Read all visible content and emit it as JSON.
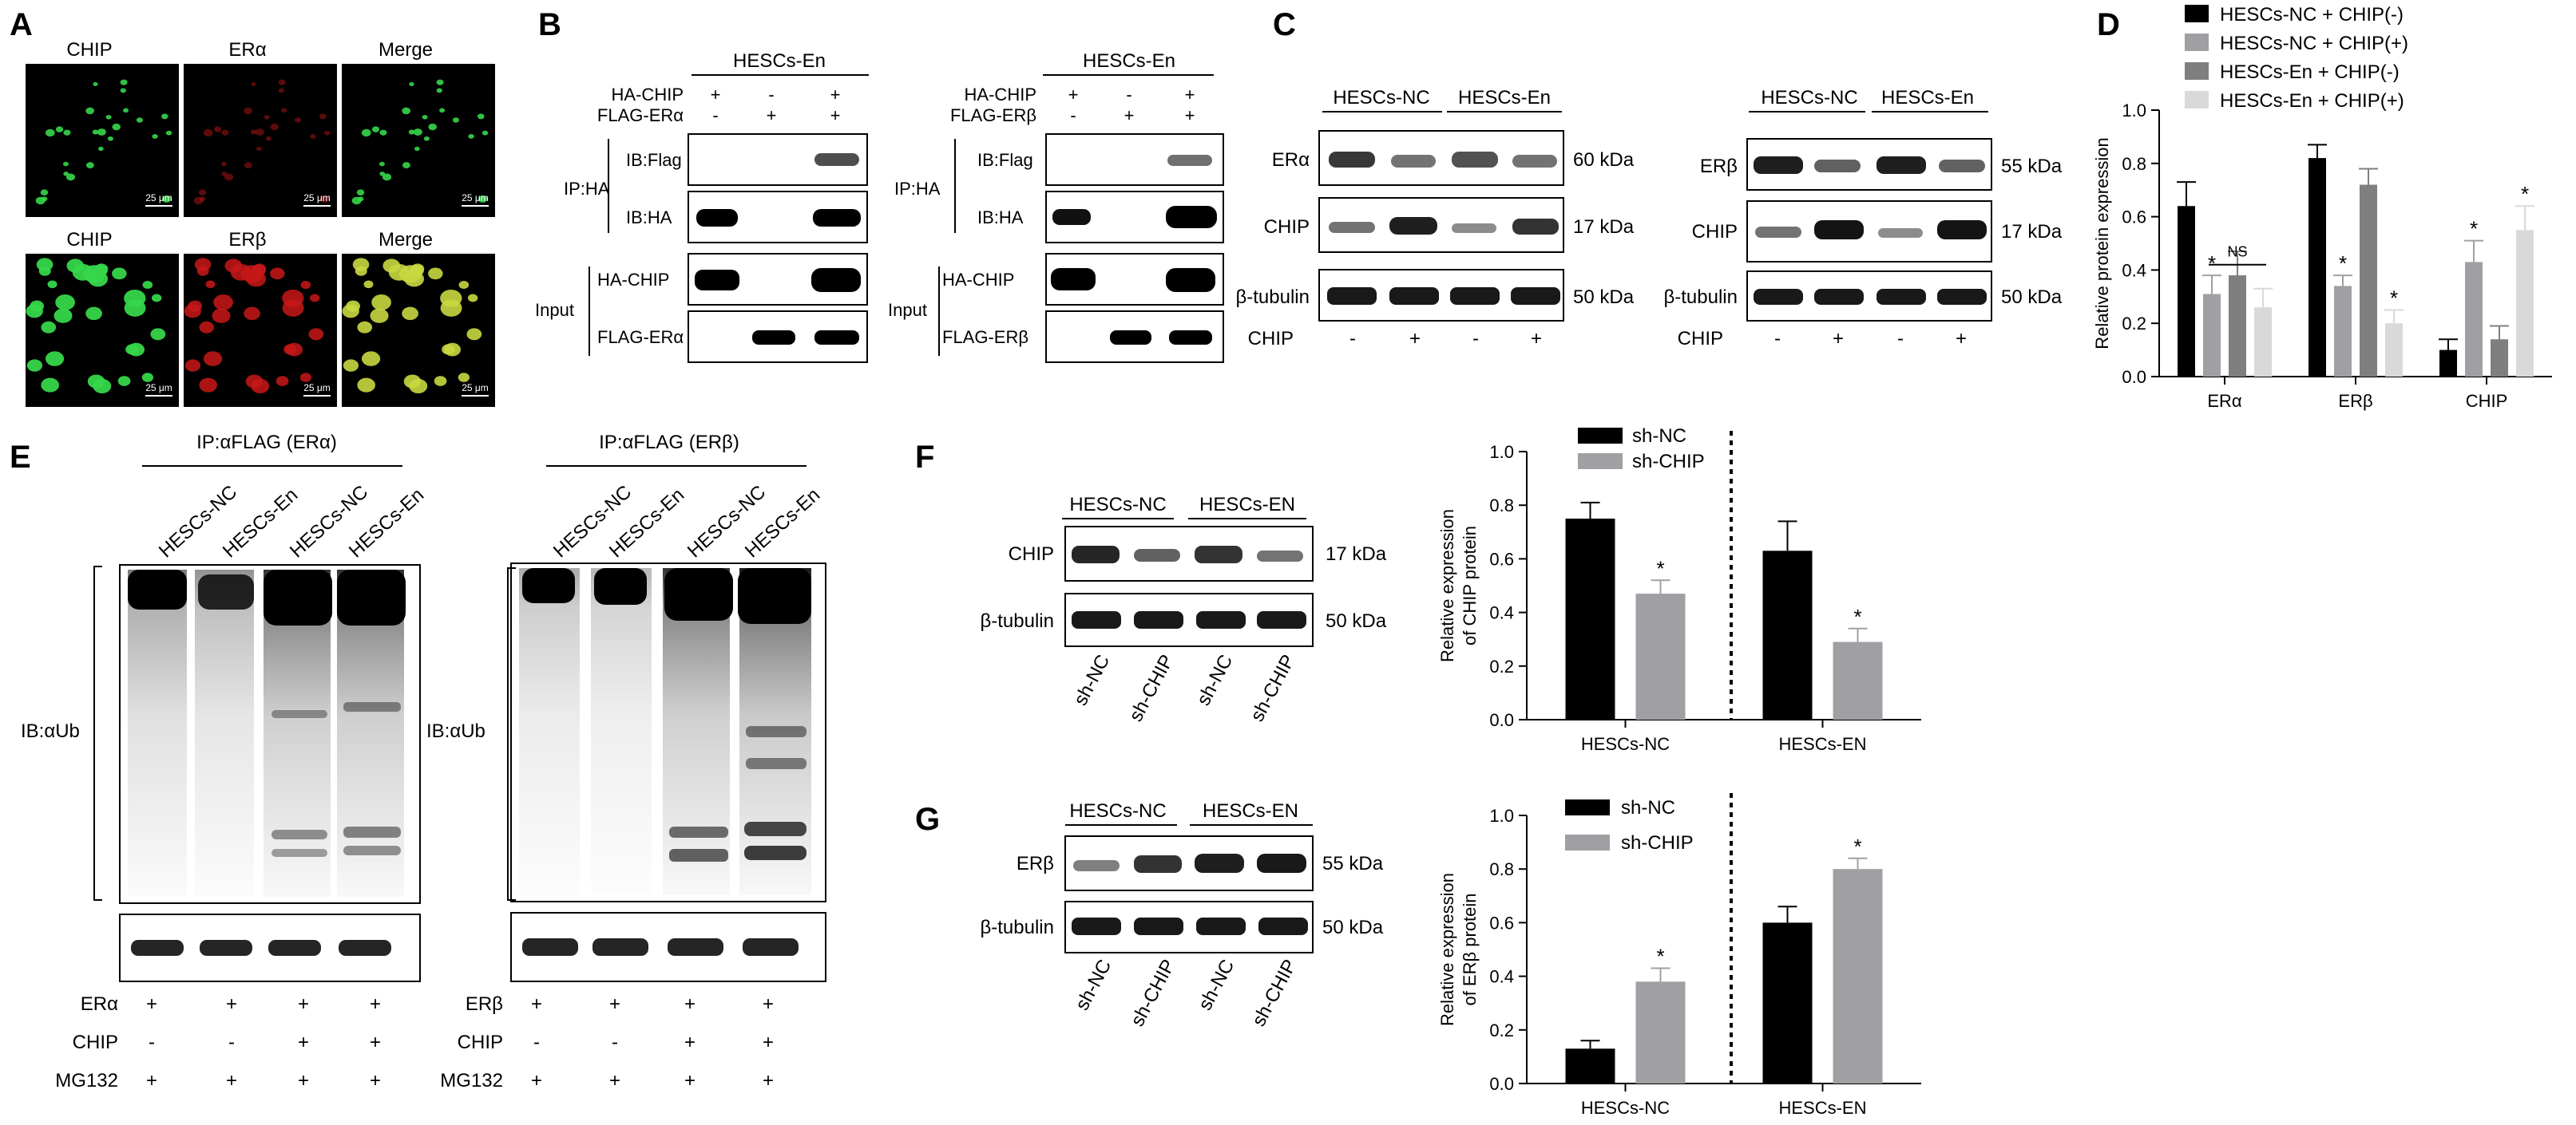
{
  "panels": {
    "A": "A",
    "B": "B",
    "C": "C",
    "D": "D",
    "E": "E",
    "F": "F",
    "G": "G"
  },
  "panel_a": {
    "row1": [
      "CHIP",
      "ERα",
      "Merge"
    ],
    "row2": [
      "CHIP",
      "ERβ",
      "Merge"
    ],
    "scale": "25 μm"
  },
  "panel_b": {
    "group": "HESCs-En",
    "left": {
      "rows": [
        {
          "label": "HA-CHIP",
          "signs": [
            "+",
            "-",
            "+"
          ]
        },
        {
          "label": "FLAG-ERα",
          "signs": [
            "-",
            "+",
            "+"
          ]
        }
      ],
      "ip": "IP:HA",
      "ib1": "IB:Flag",
      "ib2": "IB:HA",
      "input": "Input",
      "in1": "HA-CHIP",
      "in2": "FLAG-ERα"
    },
    "right": {
      "rows": [
        {
          "label": "HA-CHIP",
          "signs": [
            "+",
            "-",
            "+"
          ]
        },
        {
          "label": "FLAG-ERβ",
          "signs": [
            "-",
            "+",
            "+"
          ]
        }
      ],
      "ip": "IP:HA",
      "ib1": "IB:Flag",
      "ib2": "IB:HA",
      "input": "Input",
      "in1": "HA-CHIP",
      "in2": "FLAG-ERβ"
    }
  },
  "panel_c": {
    "groups": [
      "HESCs-NC",
      "HESCs-En"
    ],
    "left_bands": [
      "ERα",
      "CHIP",
      "β-tubulin"
    ],
    "left_kda": [
      "60 kDa",
      "17 kDa",
      "50 kDa"
    ],
    "right_bands": [
      "ERβ",
      "CHIP",
      "β-tubulin"
    ],
    "right_kda": [
      "55 kDa",
      "17 kDa",
      "50 kDa"
    ],
    "row_label": "CHIP",
    "signs": [
      "-",
      "+",
      "-",
      "+"
    ]
  },
  "panel_e": {
    "left_ip": "IP:αFLAG (ERα)",
    "right_ip": "IP:αFLAG (ERβ)",
    "lanes": [
      "HESCs-NC",
      "HESCs-En",
      "HESCs-NC",
      "HESCs-En"
    ],
    "ib": "IB:αUb",
    "left_rows": [
      {
        "label": "ERα",
        "signs": [
          "+",
          "+",
          "+",
          "+"
        ]
      },
      {
        "label": "CHIP",
        "signs": [
          "-",
          "-",
          "+",
          "+"
        ]
      },
      {
        "label": "MG132",
        "signs": [
          "+",
          "+",
          "+",
          "+"
        ]
      }
    ],
    "right_rows": [
      {
        "label": "ERβ",
        "signs": [
          "+",
          "+",
          "+",
          "+"
        ]
      },
      {
        "label": "CHIP",
        "signs": [
          "-",
          "-",
          "+",
          "+"
        ]
      },
      {
        "label": "MG132",
        "signs": [
          "+",
          "+",
          "+",
          "+"
        ]
      }
    ]
  },
  "panel_f": {
    "groups": [
      "HESCs-NC",
      "HESCs-EN"
    ],
    "bands": [
      "CHIP",
      "β-tubulin"
    ],
    "kda": [
      "17 kDa",
      "50 kDa"
    ],
    "lanes": [
      "sh-NC",
      "sh-CHIP",
      "sh-NC",
      "sh-CHIP"
    ]
  },
  "panel_g": {
    "groups": [
      "HESCs-NC",
      "HESCs-EN"
    ],
    "bands": [
      "ERβ",
      "β-tubulin"
    ],
    "kda": [
      "55 kDa",
      "50 kDa"
    ],
    "lanes": [
      "sh-NC",
      "sh-CHIP",
      "sh-NC",
      "sh-CHIP"
    ]
  },
  "colors": {
    "black": "#000000",
    "mid_gray": "#a0a0a4",
    "dark_gray": "#7f7f7f",
    "light_gray": "#d9d9d9",
    "green_fluor": "#36d64a",
    "red_fluor": "#c81818"
  },
  "chart_data": [
    {
      "id": "D",
      "type": "bar",
      "categories": [
        "ERα",
        "ERβ",
        "CHIP"
      ],
      "series": [
        {
          "name": "HESCs-NC + CHIP(-)",
          "values": [
            0.64,
            0.82,
            0.1
          ],
          "errors": [
            0.09,
            0.05,
            0.04
          ],
          "color": "#000000"
        },
        {
          "name": "HESCs-NC + CHIP(+)",
          "values": [
            0.31,
            0.34,
            0.43
          ],
          "errors": [
            0.07,
            0.04,
            0.08
          ],
          "color": "#a0a0a4"
        },
        {
          "name": "HESCs-En + CHIP(-)",
          "values": [
            0.38,
            0.72,
            0.14
          ],
          "errors": [
            0.09,
            0.06,
            0.05
          ],
          "color": "#7f7f7f"
        },
        {
          "name": "HESCs-En + CHIP(+)",
          "values": [
            0.26,
            0.2,
            0.55
          ],
          "errors": [
            0.07,
            0.05,
            0.09
          ],
          "color": "#d9d9d9"
        }
      ],
      "annotations": [
        {
          "text": "*",
          "category": 0,
          "series": 1
        },
        {
          "text": "*",
          "category": 1,
          "series": 1
        },
        {
          "text": "*",
          "category": 1,
          "series": 3
        },
        {
          "text": "*",
          "category": 2,
          "series": 1
        },
        {
          "text": "*",
          "category": 2,
          "series": 3
        }
      ],
      "ns_label": "NS",
      "ylabel": "Relative protein expression",
      "ylim": [
        0,
        1.0
      ],
      "yticks": [
        "0.0",
        "0.2",
        "0.4",
        "0.6",
        "0.8",
        "1.0"
      ],
      "legend": "top"
    },
    {
      "id": "F",
      "type": "bar",
      "categories": [
        "HESCs-NC",
        "HESCs-EN"
      ],
      "series": [
        {
          "name": "sh-NC",
          "values": [
            0.75,
            0.63
          ],
          "errors": [
            0.06,
            0.11
          ],
          "color": "#000000"
        },
        {
          "name": "sh-CHIP",
          "values": [
            0.47,
            0.29
          ],
          "errors": [
            0.05,
            0.05
          ],
          "color": "#a0a0a4"
        }
      ],
      "annotations": [
        {
          "text": "*",
          "category": 0,
          "series": 1
        },
        {
          "text": "*",
          "category": 1,
          "series": 1
        }
      ],
      "ylabel": [
        "Relative expression",
        "of CHIP protein"
      ],
      "ylim": [
        0,
        1.0
      ],
      "yticks": [
        "0.0",
        "0.2",
        "0.4",
        "0.6",
        "0.8",
        "1.0"
      ],
      "legend": "top-left"
    },
    {
      "id": "G",
      "type": "bar",
      "categories": [
        "HESCs-NC",
        "HESCs-EN"
      ],
      "series": [
        {
          "name": "sh-NC",
          "values": [
            0.13,
            0.6
          ],
          "errors": [
            0.03,
            0.06
          ],
          "color": "#000000"
        },
        {
          "name": "sh-CHIP",
          "values": [
            0.38,
            0.8
          ],
          "errors": [
            0.05,
            0.04
          ],
          "color": "#a0a0a4"
        }
      ],
      "annotations": [
        {
          "text": "*",
          "category": 0,
          "series": 1
        },
        {
          "text": "*",
          "category": 1,
          "series": 1
        }
      ],
      "ylabel": [
        "Relative expression",
        "of ERβ protein"
      ],
      "ylim": [
        0,
        1.0
      ],
      "yticks": [
        "0.0",
        "0.2",
        "0.4",
        "0.6",
        "0.8",
        "1.0"
      ],
      "legend": "top-left"
    }
  ]
}
